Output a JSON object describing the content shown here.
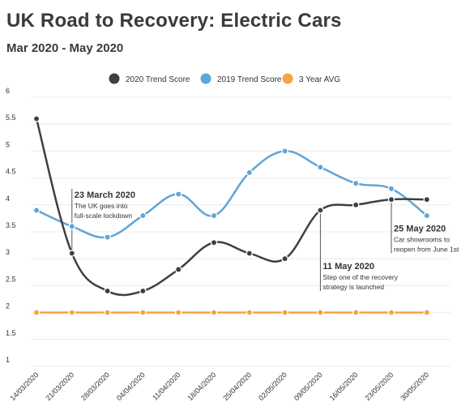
{
  "chart_data": {
    "type": "line",
    "title": "UK Road to Recovery: Electric Cars",
    "subtitle": "Mar 2020 - May 2020",
    "x": [
      "14/03/2020",
      "21/03/2020",
      "28/03/2020",
      "04/04/2020",
      "11/04/2020",
      "18/04/2020",
      "25/04/2020",
      "02/05/2020",
      "09/05/2020",
      "16/05/2020",
      "23/05/2020",
      "30/05/2020"
    ],
    "ylim": [
      1,
      6
    ],
    "yticks": [
      "1",
      "1.5",
      "2",
      "2.5",
      "3",
      "3.5",
      "4",
      "4.5",
      "5",
      "5.5",
      "6"
    ],
    "grid": true,
    "legend_placement": "top-center",
    "series": [
      {
        "name": "2020 Trend Score",
        "color": "#3f3f3f",
        "values": [
          5.6,
          3.1,
          2.4,
          2.4,
          2.8,
          3.3,
          3.1,
          3.0,
          3.9,
          4.0,
          4.1,
          4.1
        ]
      },
      {
        "name": "2019 Trend Score",
        "color": "#5ea5d8",
        "values": [
          3.9,
          3.6,
          3.4,
          3.8,
          4.2,
          3.8,
          4.6,
          5.0,
          4.7,
          4.4,
          4.3,
          3.8
        ]
      },
      {
        "name": "3 Year AVG",
        "color": "#f2a541",
        "values": [
          2,
          2,
          2,
          2,
          2,
          2,
          2,
          2,
          2,
          2,
          2,
          2
        ]
      }
    ],
    "annotations": [
      {
        "index": 1,
        "y": 4.3,
        "title": "23 March 2020",
        "lines": [
          "The UK goes into",
          "full-scale lockdown"
        ]
      },
      {
        "index": 8,
        "y": 2.4,
        "title": "11 May 2020",
        "lines": [
          "Step one of the recovery",
          "strategy is launched"
        ]
      },
      {
        "index": 10,
        "y": 3.1,
        "title": "25 May 2020",
        "lines": [
          "Car showrooms to",
          "reopen from June 1st"
        ]
      }
    ]
  }
}
